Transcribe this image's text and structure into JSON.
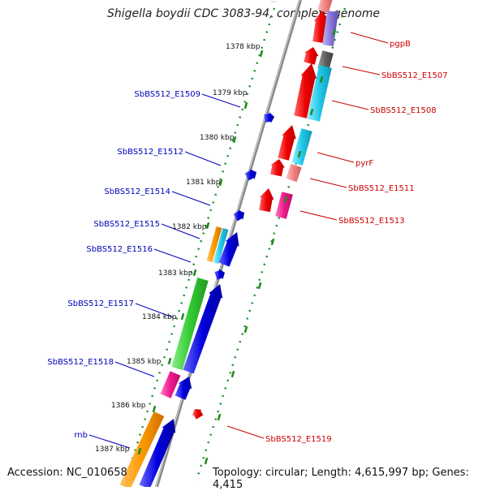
{
  "title": "Shigella boydii CDC 3083-94, complete genome",
  "footer": {
    "accession_label": "Accession:",
    "accession": "NC_010658",
    "topology_label": "Topology:",
    "topology": "circular",
    "length_label": "Length:",
    "length": "4,615,997 bp",
    "genes_label": "Genes:",
    "genes": "4,415"
  },
  "ticks": [
    "1378 kbp",
    "1379 kbp",
    "1380 kbp",
    "1381 kbp",
    "1382 kbp",
    "1383 kbp",
    "1384 kbp",
    "1385 kbp",
    "1386 kbp",
    "1387 kbp"
  ],
  "labels_left": [
    "SbBS512_E1509",
    "SbBS512_E1512",
    "SbBS512_E1514",
    "SbBS512_E1515",
    "SbBS512_E1516",
    "SbBS512_E1517",
    "SbBS512_E1518",
    "rnb"
  ],
  "labels_right": [
    "pgpB",
    "SbBS512_E1507",
    "SbBS512_E1508",
    "pyrF",
    "SbBS512_E1511",
    "SbBS512_E1513",
    "SbBS512_E1519"
  ],
  "colors": {
    "backbone": "#8a8a8a",
    "ruler_dots": "#1e8c1e",
    "left_label": "#0000bb",
    "right_label": "#cc0000",
    "forward_gene": "#ee0000",
    "reverse_gene": "#0000dd",
    "cyan_gene": "#22c8e8",
    "green_gene": "#33cc33",
    "orange_gene": "#ff9900",
    "magenta_gene": "#ee1a8c",
    "pink_gene": "#f08080",
    "gray_gene": "#606060",
    "lavender_gene": "#8a7adb"
  }
}
